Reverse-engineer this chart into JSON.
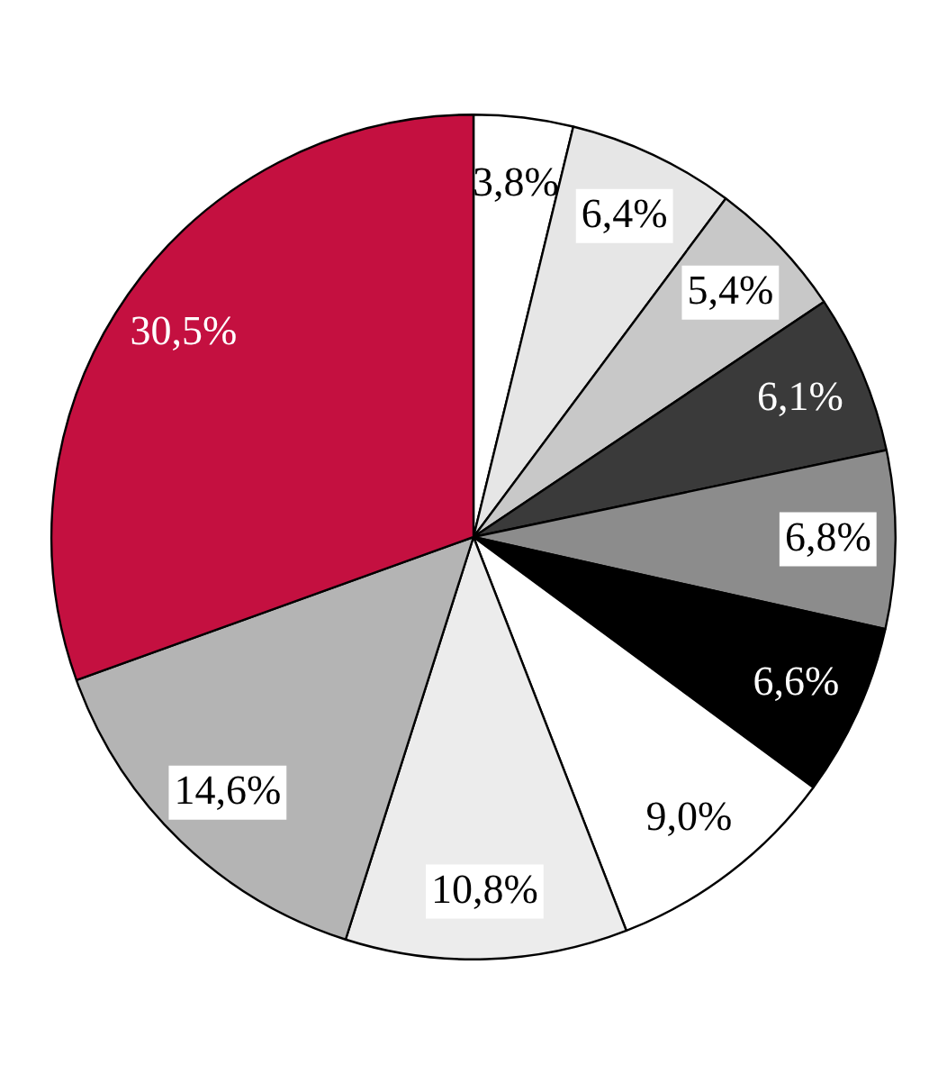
{
  "chart_data": {
    "type": "pie",
    "categories": [
      null,
      null,
      null,
      null,
      null,
      null,
      null,
      null,
      null,
      null
    ],
    "values": [
      3.8,
      6.4,
      5.4,
      6.1,
      6.8,
      6.6,
      9.0,
      10.8,
      14.6,
      30.5
    ],
    "value_labels": [
      "3,8%",
      "6,4%",
      "5,4%",
      "6,1%",
      "6,8%",
      "6,6%",
      "9,0%",
      "10,8%",
      "14,6%",
      "30,5%"
    ],
    "colors": [
      "#ffffff",
      "#e6e6e6",
      "#c8c8c8",
      "#3a3a3a",
      "#8c8c8c",
      "#000000",
      "#ffffff",
      "#ececec",
      "#b4b4b4",
      "#c41040"
    ],
    "legend": false
  }
}
